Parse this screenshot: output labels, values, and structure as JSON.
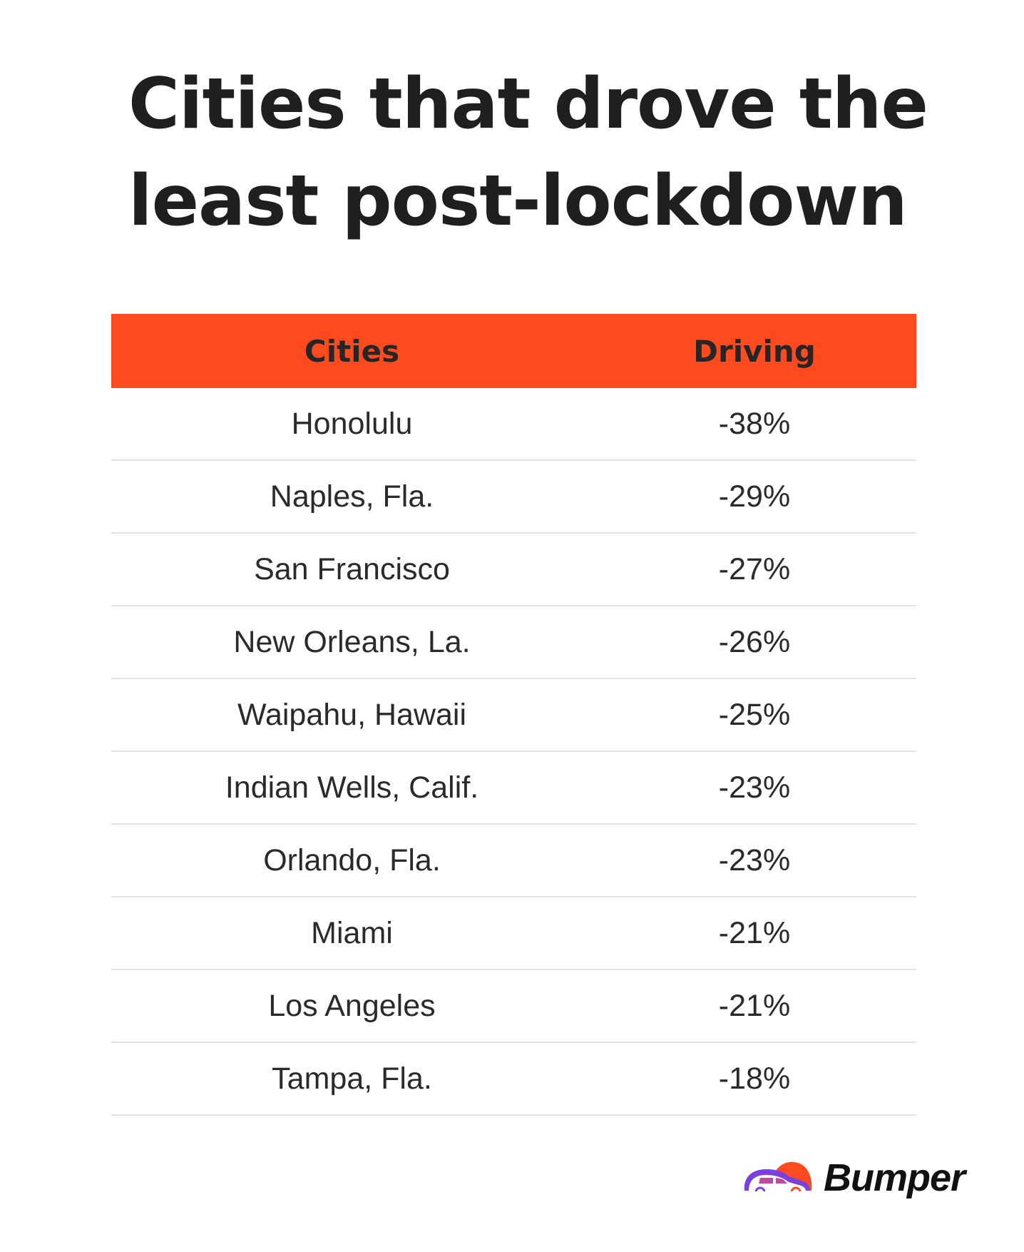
{
  "title": "Cities that drove the least post-lockdown",
  "table": {
    "headers": [
      "Cities",
      "Driving"
    ],
    "rows": [
      {
        "city": "Honolulu",
        "driving": "-38%"
      },
      {
        "city": "Naples, Fla.",
        "driving": "-29%"
      },
      {
        "city": "San Francisco",
        "driving": "-27%"
      },
      {
        "city": "New Orleans, La.",
        "driving": "-26%"
      },
      {
        "city": "Waipahu, Hawaii",
        "driving": "-25%"
      },
      {
        "city": "Indian Wells, Calif.",
        "driving": "-23%"
      },
      {
        "city": "Orlando, Fla.",
        "driving": "-23%"
      },
      {
        "city": "Miami",
        "driving": "-21%"
      },
      {
        "city": "Los Angeles",
        "driving": "-21%"
      },
      {
        "city": "Tampa, Fla.",
        "driving": "-18%"
      }
    ]
  },
  "brand": {
    "name": "Bumper",
    "icon": "car-logo-icon"
  },
  "colors": {
    "header": "#fd4a1f",
    "logo_purple": "#7b3fe0",
    "logo_orange": "#fd4a1f"
  }
}
